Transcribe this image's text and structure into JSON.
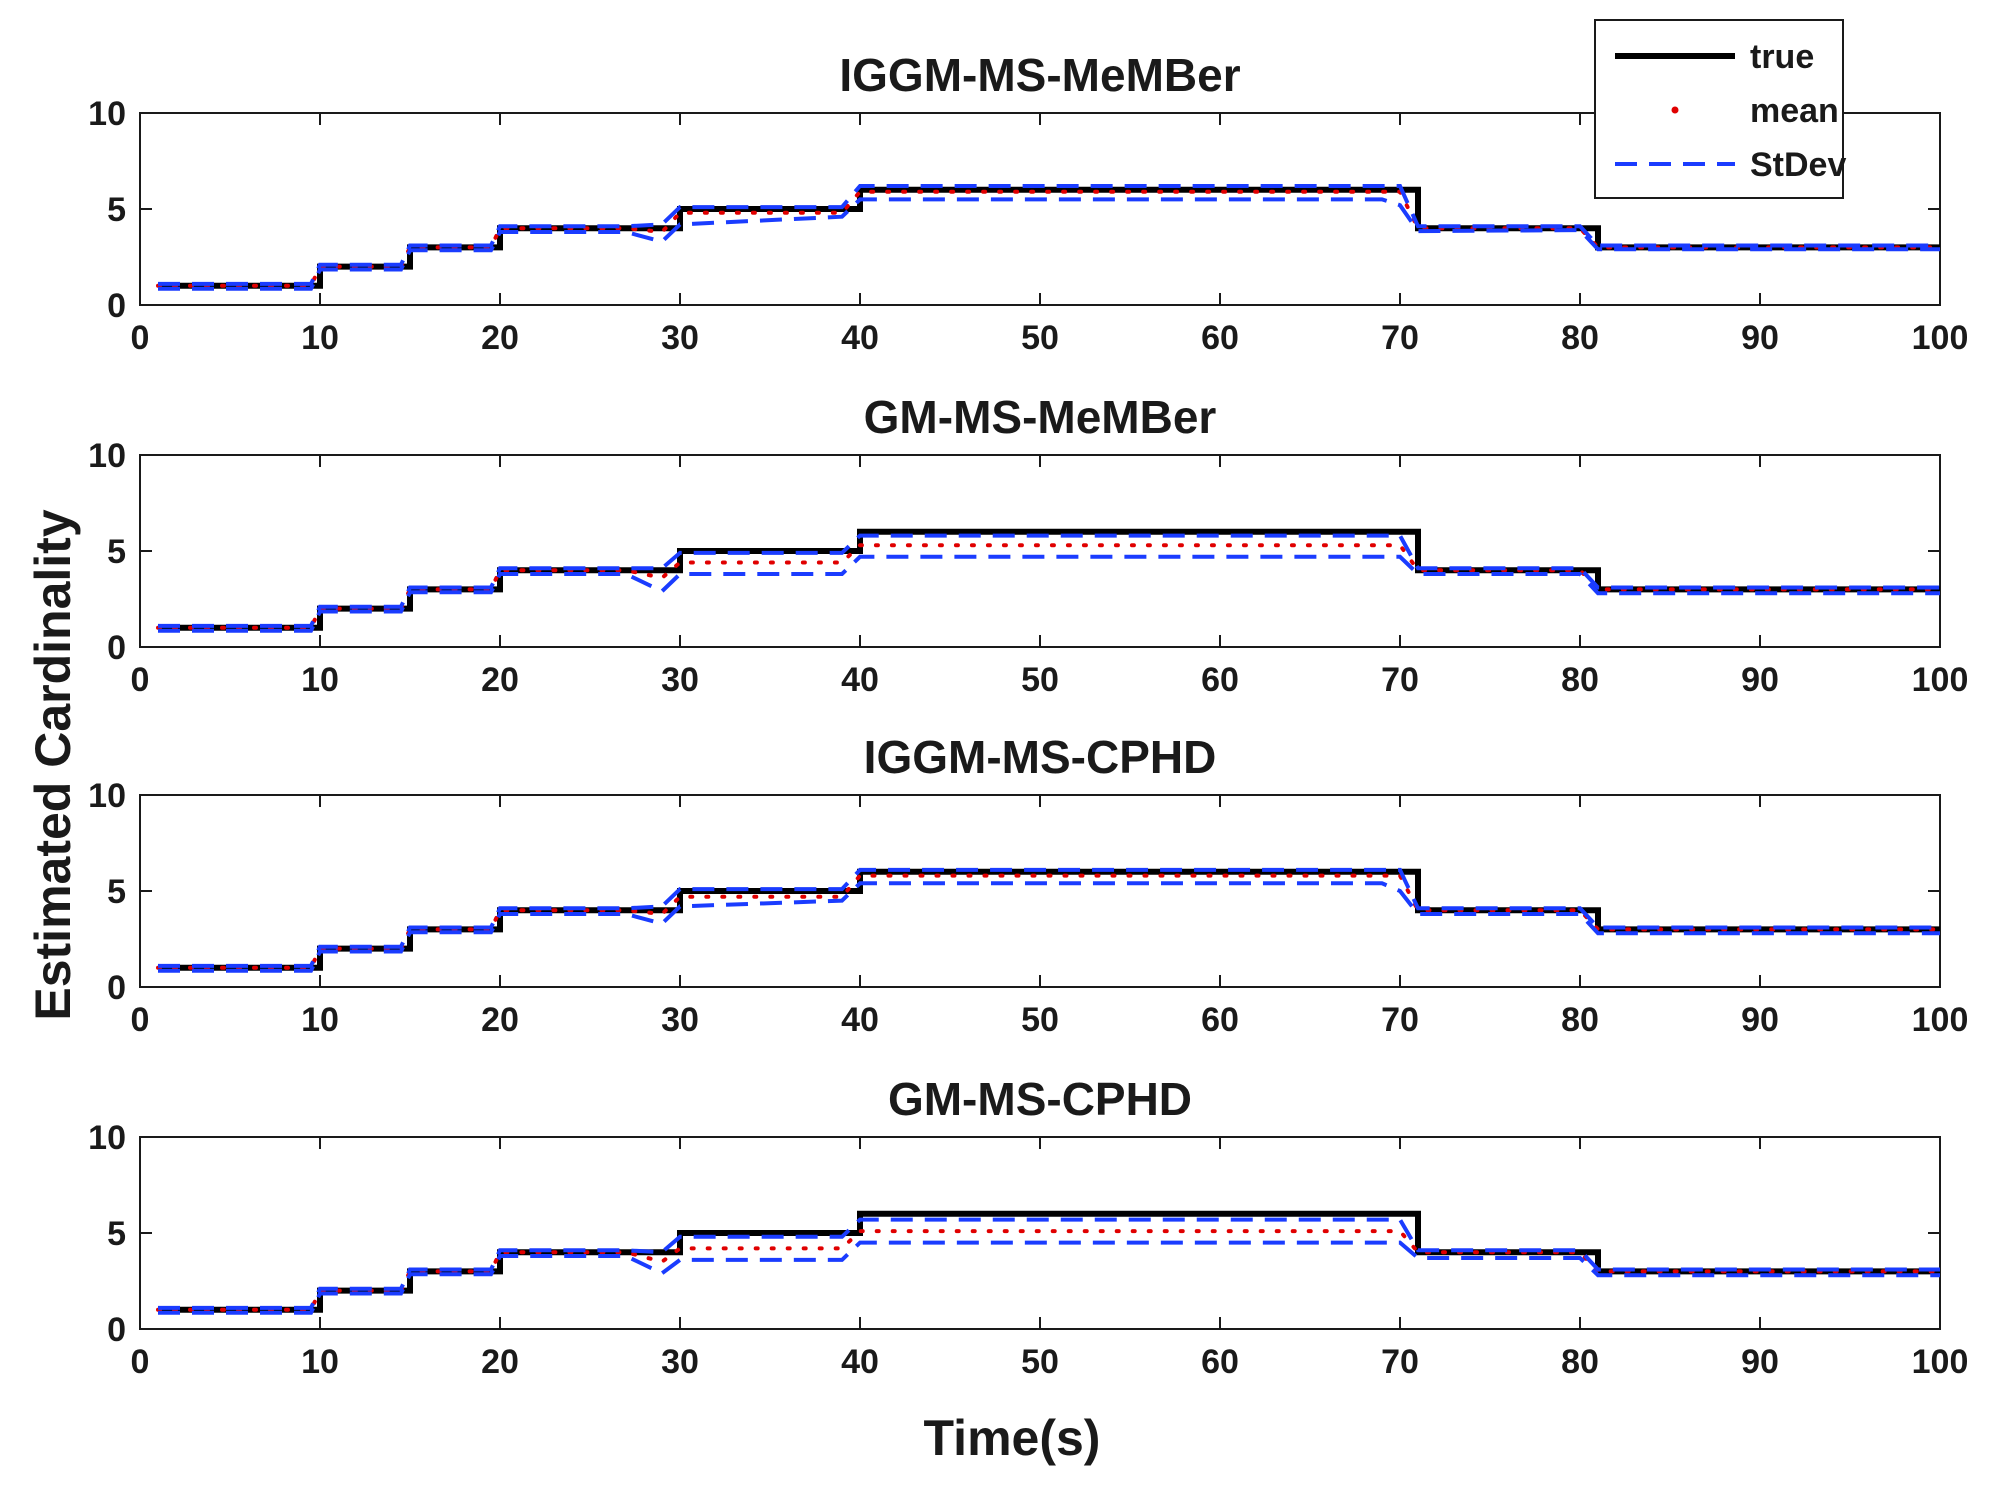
{
  "figure": {
    "xlabel": "Time(s)",
    "ylabel": "Estimated Cardinality"
  },
  "legend": {
    "placement": "top-right",
    "items": [
      {
        "label": "true",
        "color": "#000000",
        "style": "solid"
      },
      {
        "label": "mean",
        "color": "#e00000",
        "style": "dotted"
      },
      {
        "label": "StDev",
        "color": "#1a3cff",
        "style": "dashed"
      }
    ]
  },
  "colors": {
    "true": "#000000",
    "mean": "#e00000",
    "stdev": "#1a3cff"
  },
  "chart_data": [
    {
      "type": "line",
      "title": "IGGM-MS-MeMBer",
      "xlim": [
        0,
        100
      ],
      "ylim": [
        0,
        10
      ],
      "xticks": [
        0,
        10,
        20,
        30,
        40,
        50,
        60,
        70,
        80,
        90,
        100
      ],
      "yticks": [
        0,
        5,
        10
      ],
      "series": [
        {
          "name": "true",
          "step": true,
          "x": [
            1,
            10,
            15,
            20,
            30,
            40,
            71,
            81,
            100
          ],
          "y": [
            1,
            2,
            3,
            4,
            5,
            6,
            4,
            3,
            3
          ]
        },
        {
          "name": "mean",
          "x": [
            1,
            9.5,
            10,
            14.5,
            15,
            19.5,
            20,
            27,
            29,
            30,
            39,
            40,
            70,
            71,
            80,
            81,
            100
          ],
          "y": [
            1,
            1,
            2,
            2,
            3,
            3,
            4,
            4,
            3.8,
            4.8,
            4.8,
            5.9,
            5.9,
            4,
            4,
            3,
            3
          ]
        },
        {
          "name": "StDev upper",
          "x": [
            1,
            9.5,
            10,
            14.5,
            15,
            19.5,
            20,
            27,
            29,
            30,
            39,
            40,
            70,
            71,
            80,
            81,
            100
          ],
          "y": [
            1.1,
            1.1,
            2.1,
            2.1,
            3.1,
            3.1,
            4.1,
            4.1,
            4.2,
            5.1,
            5.1,
            6.2,
            6.2,
            4.1,
            4.1,
            3.1,
            3.1
          ]
        },
        {
          "name": "StDev lower",
          "x": [
            1,
            9.5,
            10,
            14.5,
            15,
            19.5,
            20,
            27,
            29,
            30,
            39,
            40,
            69,
            70,
            71,
            80,
            81,
            100
          ],
          "y": [
            0.85,
            0.85,
            1.85,
            1.85,
            2.85,
            2.85,
            3.8,
            3.8,
            3.3,
            4.2,
            4.6,
            5.5,
            5.5,
            5.2,
            3.85,
            3.9,
            2.9,
            2.9
          ]
        }
      ]
    },
    {
      "type": "line",
      "title": "GM-MS-MeMBer",
      "xlim": [
        0,
        100
      ],
      "ylim": [
        0,
        10
      ],
      "xticks": [
        0,
        10,
        20,
        30,
        40,
        50,
        60,
        70,
        80,
        90,
        100
      ],
      "yticks": [
        0,
        5,
        10
      ],
      "series": [
        {
          "name": "true",
          "step": true,
          "x": [
            1,
            10,
            15,
            20,
            30,
            40,
            71,
            81,
            100
          ],
          "y": [
            1,
            2,
            3,
            4,
            5,
            6,
            4,
            3,
            3
          ]
        },
        {
          "name": "mean",
          "x": [
            1,
            9.5,
            10,
            14.5,
            15,
            19.5,
            20,
            27,
            29,
            30,
            39,
            40,
            70,
            71,
            80,
            81,
            100
          ],
          "y": [
            1,
            1,
            2,
            2,
            3,
            3,
            4,
            4,
            3.6,
            4.4,
            4.4,
            5.3,
            5.3,
            4,
            4,
            3,
            3
          ]
        },
        {
          "name": "StDev upper",
          "x": [
            1,
            9.5,
            10,
            14.5,
            15,
            19.5,
            20,
            27,
            29,
            30,
            39,
            40,
            70,
            71,
            80,
            81,
            100
          ],
          "y": [
            1.1,
            1.1,
            2.1,
            2.1,
            3.1,
            3.1,
            4.1,
            4.1,
            4.1,
            4.9,
            4.9,
            5.8,
            5.8,
            4.1,
            4.1,
            3.1,
            3.1
          ]
        },
        {
          "name": "StDev lower",
          "x": [
            1,
            9.5,
            10,
            14.5,
            15,
            19.5,
            20,
            27,
            29,
            30,
            39,
            40,
            70,
            71,
            80,
            81,
            100
          ],
          "y": [
            0.85,
            0.85,
            1.85,
            1.85,
            2.85,
            2.85,
            3.8,
            3.8,
            2.9,
            3.8,
            3.8,
            4.7,
            4.7,
            3.8,
            3.8,
            2.8,
            2.8
          ]
        }
      ]
    },
    {
      "type": "line",
      "title": "IGGM-MS-CPHD",
      "xlim": [
        0,
        100
      ],
      "ylim": [
        0,
        10
      ],
      "xticks": [
        0,
        10,
        20,
        30,
        40,
        50,
        60,
        70,
        80,
        90,
        100
      ],
      "yticks": [
        0,
        5,
        10
      ],
      "series": [
        {
          "name": "true",
          "step": true,
          "x": [
            1,
            10,
            15,
            20,
            30,
            40,
            71,
            81,
            100
          ],
          "y": [
            1,
            2,
            3,
            4,
            5,
            6,
            4,
            3,
            3
          ]
        },
        {
          "name": "mean",
          "x": [
            1,
            9.5,
            10,
            14.5,
            15,
            19.5,
            20,
            27,
            29,
            30,
            39,
            40,
            70,
            71,
            80,
            81,
            100
          ],
          "y": [
            1,
            1,
            2,
            2,
            3,
            3,
            4,
            4,
            3.8,
            4.7,
            4.7,
            5.8,
            5.8,
            4,
            4,
            3,
            3
          ]
        },
        {
          "name": "StDev upper",
          "x": [
            1,
            9.5,
            10,
            14.5,
            15,
            19.5,
            20,
            27,
            29,
            30,
            39,
            40,
            70,
            71,
            80,
            81,
            100
          ],
          "y": [
            1.1,
            1.1,
            2.1,
            2.1,
            3.1,
            3.1,
            4.1,
            4.1,
            4.2,
            5.1,
            5.1,
            6.1,
            6.1,
            4.1,
            4.1,
            3.1,
            3.1
          ]
        },
        {
          "name": "StDev lower",
          "x": [
            1,
            9.5,
            10,
            14.5,
            15,
            19.5,
            20,
            27,
            29,
            30,
            39,
            40,
            69,
            70,
            71,
            80,
            81,
            100
          ],
          "y": [
            0.85,
            0.85,
            1.85,
            1.85,
            2.85,
            2.85,
            3.8,
            3.8,
            3.3,
            4.2,
            4.5,
            5.4,
            5.4,
            5.0,
            3.8,
            3.8,
            2.8,
            2.8
          ]
        }
      ]
    },
    {
      "type": "line",
      "title": "GM-MS-CPHD",
      "xlim": [
        0,
        100
      ],
      "ylim": [
        0,
        10
      ],
      "xticks": [
        0,
        10,
        20,
        30,
        40,
        50,
        60,
        70,
        80,
        90,
        100
      ],
      "yticks": [
        0,
        5,
        10
      ],
      "series": [
        {
          "name": "true",
          "step": true,
          "x": [
            1,
            10,
            15,
            20,
            30,
            40,
            71,
            81,
            100
          ],
          "y": [
            1,
            2,
            3,
            4,
            5,
            6,
            4,
            3,
            3
          ]
        },
        {
          "name": "mean",
          "x": [
            1,
            9.5,
            10,
            14.5,
            15,
            19.5,
            20,
            27,
            29,
            30,
            39,
            40,
            70,
            71,
            80,
            81,
            100
          ],
          "y": [
            1,
            1,
            2,
            2,
            3,
            3,
            4,
            4,
            3.5,
            4.2,
            4.2,
            5.1,
            5.1,
            4,
            4,
            3,
            3
          ]
        },
        {
          "name": "StDev upper",
          "x": [
            1,
            9.5,
            10,
            14.5,
            15,
            19.5,
            20,
            27,
            29,
            30,
            39,
            40,
            70,
            71,
            80,
            81,
            100
          ],
          "y": [
            1.1,
            1.1,
            2.1,
            2.1,
            3.1,
            3.1,
            4.1,
            4.1,
            4.0,
            4.8,
            4.8,
            5.7,
            5.7,
            4.1,
            4.1,
            3.1,
            3.1
          ]
        },
        {
          "name": "StDev lower",
          "x": [
            1,
            9.5,
            10,
            14.5,
            15,
            19.5,
            20,
            27,
            29,
            30,
            39,
            40,
            70,
            71,
            80,
            81,
            100
          ],
          "y": [
            0.85,
            0.85,
            1.85,
            1.85,
            2.85,
            2.85,
            3.8,
            3.8,
            2.9,
            3.6,
            3.6,
            4.5,
            4.5,
            3.7,
            3.7,
            2.8,
            2.8
          ]
        }
      ]
    }
  ]
}
